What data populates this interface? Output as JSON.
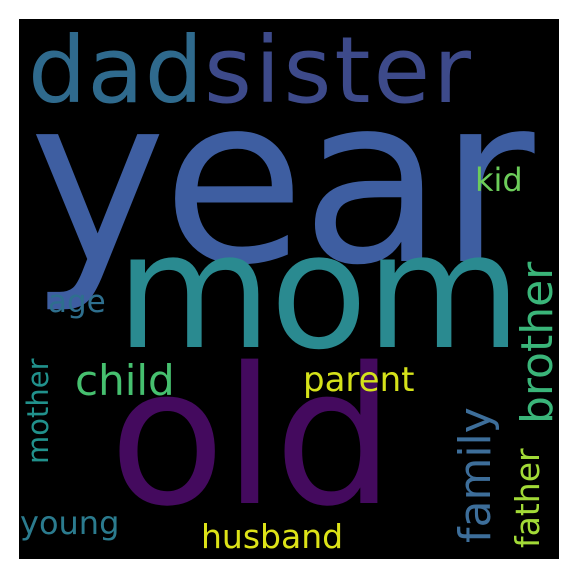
{
  "word_cloud": {
    "background": "#000000",
    "words": [
      {
        "key": "year",
        "text": "year",
        "color": "#3e5ea1"
      },
      {
        "key": "mom",
        "text": "mom",
        "color": "#2a8a90"
      },
      {
        "key": "old",
        "text": "old",
        "color": "#440a5e"
      },
      {
        "key": "dad",
        "text": "dad",
        "color": "#2f6a8d"
      },
      {
        "key": "sister",
        "text": "sister",
        "color": "#3d4a8a"
      },
      {
        "key": "brother",
        "text": "brother",
        "color": "#3ab579"
      },
      {
        "key": "family",
        "text": "family",
        "color": "#3d6e9a"
      },
      {
        "key": "child",
        "text": "child",
        "color": "#46c06f"
      },
      {
        "key": "parent",
        "text": "parent",
        "color": "#d5e21a"
      },
      {
        "key": "husband",
        "text": "husband",
        "color": "#dde318"
      },
      {
        "key": "father",
        "text": "father",
        "color": "#a2da37"
      },
      {
        "key": "mother",
        "text": "mother",
        "color": "#21918c"
      },
      {
        "key": "young",
        "text": "young",
        "color": "#2b7b8e"
      },
      {
        "key": "age",
        "text": "age",
        "color": "#2e6f8e"
      },
      {
        "key": "kid",
        "text": "kid",
        "color": "#6ccd5a"
      }
    ]
  }
}
